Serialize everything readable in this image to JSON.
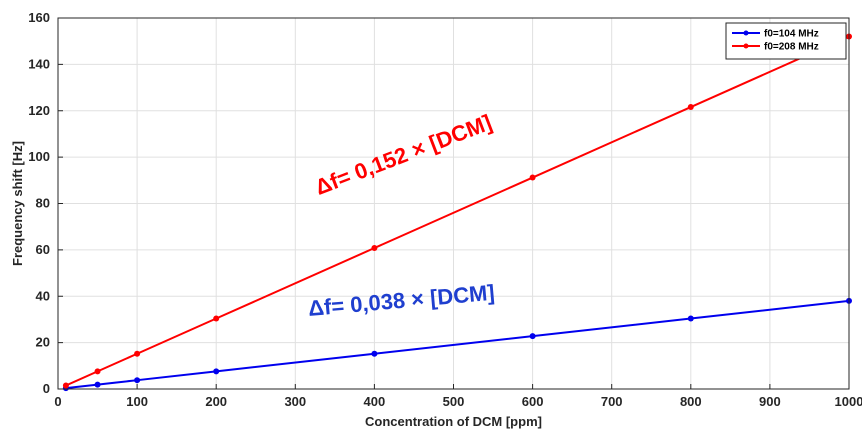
{
  "chart_data": {
    "type": "line",
    "xlabel": "Concentration of DCM [ppm]",
    "ylabel": "Frequency shift [Hz]",
    "xlim": [
      0,
      1000
    ],
    "ylim": [
      0,
      160
    ],
    "xticks": [
      0,
      100,
      200,
      300,
      400,
      500,
      600,
      700,
      800,
      900,
      1000
    ],
    "yticks": [
      0,
      20,
      40,
      60,
      80,
      100,
      120,
      140,
      160
    ],
    "grid": true,
    "legend_position": "top-right",
    "series": [
      {
        "name": "f0=104 MHz",
        "color": "#0000ee",
        "x": [
          10,
          50,
          100,
          200,
          400,
          600,
          800,
          1000
        ],
        "y": [
          0.4,
          1.9,
          3.8,
          7.6,
          15.2,
          22.8,
          30.4,
          38.0
        ]
      },
      {
        "name": "f0=208 MHz",
        "color": "#ff0000",
        "x": [
          10,
          50,
          100,
          200,
          400,
          600,
          800,
          1000
        ],
        "y": [
          1.5,
          7.6,
          15.2,
          30.4,
          60.8,
          91.2,
          121.6,
          152.0
        ]
      }
    ],
    "annotations": [
      {
        "text": "Δf= 0,152 × [DCM]",
        "color": "#ff0000",
        "x": 440,
        "y": 98,
        "rotate_deg": -21
      },
      {
        "text": "Δf= 0,038 × [DCM]",
        "color": "#1f3fcf",
        "x": 435,
        "y": 35,
        "rotate_deg": -5
      }
    ]
  }
}
